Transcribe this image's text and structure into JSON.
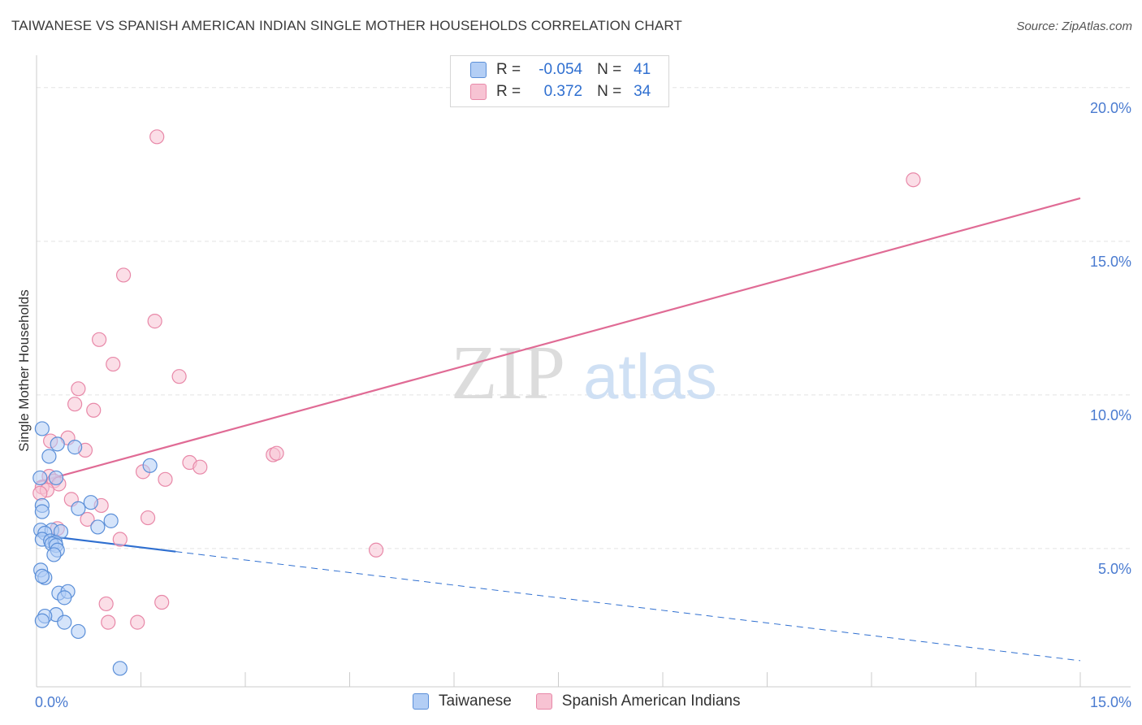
{
  "header": {
    "title": "TAIWANESE VS SPANISH AMERICAN INDIAN SINGLE MOTHER HOUSEHOLDS CORRELATION CHART",
    "source": "Source: ZipAtlas.com"
  },
  "legend": {
    "rows": [
      {
        "r_label": "R =",
        "r_value": "-0.054",
        "n_label": "N =",
        "n_value": "41"
      },
      {
        "r_label": "R =",
        "r_value": "0.372",
        "n_label": "N =",
        "n_value": "34"
      }
    ]
  },
  "watermark": {
    "zip": "ZIP",
    "atlas": "atlas"
  },
  "colors": {
    "taiwanese_fill": "#b3cef5",
    "taiwanese_stroke": "#5b8fd8",
    "taiwanese_line": "#2f6fd0",
    "spanish_fill": "#f7c3d3",
    "spanish_stroke": "#e888a8",
    "spanish_line": "#e06b95",
    "tick_text": "#4a7bd0",
    "grid": "#e3e3e3"
  },
  "chart_data": {
    "type": "scatter",
    "title": "TAIWANESE VS SPANISH AMERICAN INDIAN SINGLE MOTHER HOUSEHOLDS CORRELATION CHART",
    "xlabel": "",
    "ylabel": "Single Mother Households",
    "xlim": [
      0,
      15
    ],
    "ylim": [
      0.5,
      21
    ],
    "x_tick_labels": [
      {
        "value": 0,
        "label": "0.0%"
      },
      {
        "value": 15,
        "label": "15.0%"
      }
    ],
    "y_tick_labels": [
      {
        "value": 5,
        "label": "5.0%"
      },
      {
        "value": 10,
        "label": "10.0%"
      },
      {
        "value": 15,
        "label": "15.0%"
      },
      {
        "value": 20,
        "label": "20.0%"
      }
    ],
    "series": [
      {
        "name": "Taiwanese",
        "R": -0.054,
        "N": 41,
        "trend": {
          "solid": [
            [
              0.0,
              5.45
            ],
            [
              2.0,
              4.9
            ]
          ],
          "dashed": [
            [
              2.0,
              4.9
            ],
            [
              15.0,
              1.35
            ]
          ]
        },
        "points": [
          [
            0.08,
            8.9
          ],
          [
            0.3,
            8.4
          ],
          [
            0.55,
            8.3
          ],
          [
            0.18,
            8.0
          ],
          [
            1.63,
            7.7
          ],
          [
            0.05,
            7.3
          ],
          [
            0.28,
            7.3
          ],
          [
            0.08,
            6.4
          ],
          [
            0.08,
            6.2
          ],
          [
            0.6,
            6.3
          ],
          [
            0.78,
            6.5
          ],
          [
            1.07,
            5.9
          ],
          [
            0.88,
            5.7
          ],
          [
            0.06,
            5.6
          ],
          [
            0.22,
            5.6
          ],
          [
            0.12,
            5.5
          ],
          [
            0.35,
            5.55
          ],
          [
            0.08,
            5.3
          ],
          [
            0.2,
            5.25
          ],
          [
            0.27,
            5.2
          ],
          [
            0.22,
            5.15
          ],
          [
            0.28,
            5.1
          ],
          [
            0.3,
            4.95
          ],
          [
            0.25,
            4.8
          ],
          [
            0.06,
            4.3
          ],
          [
            0.12,
            4.05
          ],
          [
            0.08,
            4.1
          ],
          [
            0.32,
            3.55
          ],
          [
            0.45,
            3.6
          ],
          [
            0.4,
            3.4
          ],
          [
            0.28,
            2.85
          ],
          [
            0.12,
            2.8
          ],
          [
            0.08,
            2.65
          ],
          [
            0.4,
            2.6
          ],
          [
            0.6,
            2.3
          ],
          [
            1.2,
            1.1
          ]
        ]
      },
      {
        "name": "Spanish American Indians",
        "R": 0.372,
        "N": 34,
        "trend": {
          "solid": [
            [
              0.0,
              7.15
            ],
            [
              15.0,
              16.4
            ]
          ]
        },
        "points": [
          [
            1.73,
            18.4
          ],
          [
            12.6,
            17.0
          ],
          [
            1.25,
            13.9
          ],
          [
            1.7,
            12.4
          ],
          [
            0.9,
            11.8
          ],
          [
            1.1,
            11.0
          ],
          [
            2.05,
            10.6
          ],
          [
            0.6,
            10.2
          ],
          [
            0.55,
            9.7
          ],
          [
            0.82,
            9.5
          ],
          [
            0.2,
            8.5
          ],
          [
            0.45,
            8.6
          ],
          [
            0.7,
            8.2
          ],
          [
            3.4,
            8.05
          ],
          [
            3.45,
            8.1
          ],
          [
            2.2,
            7.8
          ],
          [
            2.35,
            7.65
          ],
          [
            1.53,
            7.5
          ],
          [
            1.85,
            7.25
          ],
          [
            0.18,
            7.35
          ],
          [
            0.25,
            7.2
          ],
          [
            0.32,
            7.1
          ],
          [
            0.08,
            7.0
          ],
          [
            0.15,
            6.9
          ],
          [
            0.05,
            6.8
          ],
          [
            0.5,
            6.6
          ],
          [
            0.93,
            6.4
          ],
          [
            1.6,
            6.0
          ],
          [
            0.73,
            5.95
          ],
          [
            0.3,
            5.65
          ],
          [
            1.2,
            5.3
          ],
          [
            4.88,
            4.95
          ],
          [
            1.0,
            3.2
          ],
          [
            1.8,
            3.25
          ],
          [
            1.03,
            2.6
          ],
          [
            1.45,
            2.6
          ]
        ]
      }
    ]
  },
  "bottom_legend": {
    "items": [
      {
        "label": "Taiwanese"
      },
      {
        "label": "Spanish American Indians"
      }
    ]
  }
}
